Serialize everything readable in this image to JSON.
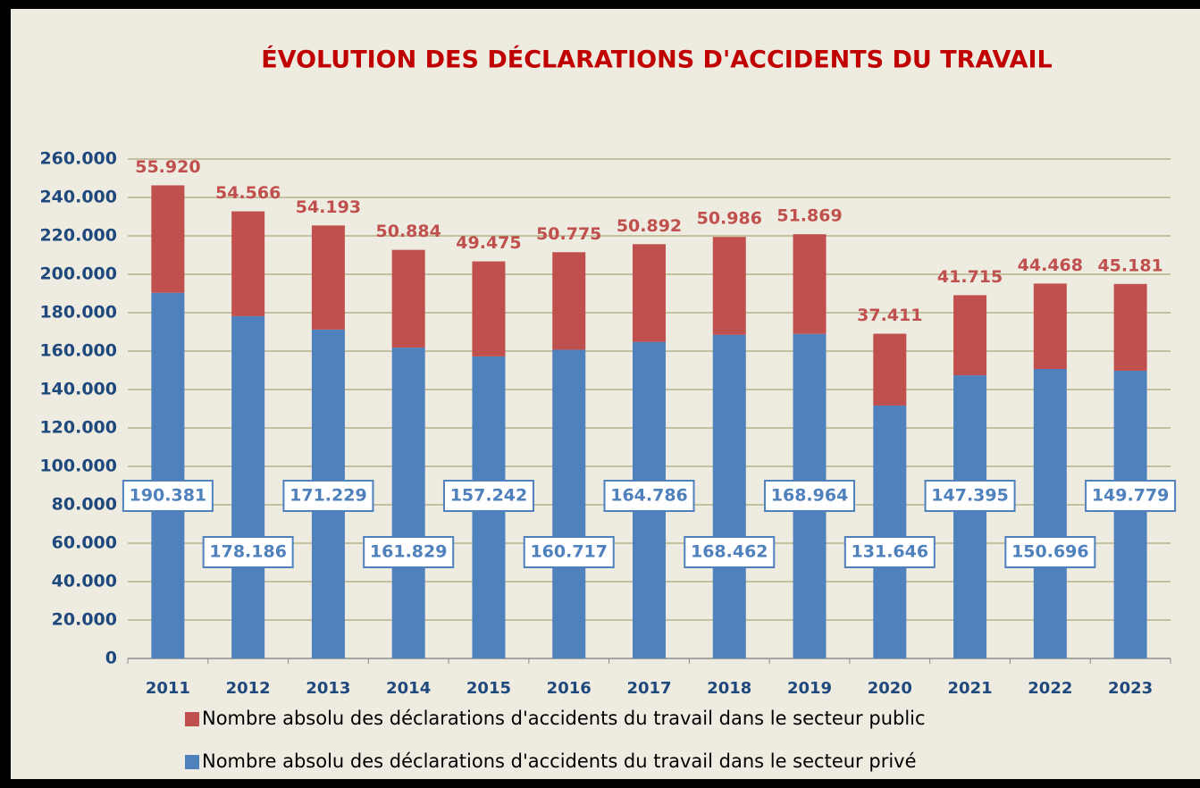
{
  "chart_data": {
    "type": "stacked_bar",
    "title": "ÉVOLUTION DES DÉCLARATIONS D'ACCIDENTS DU TRAVAIL",
    "categories": [
      "2011",
      "2012",
      "2013",
      "2014",
      "2015",
      "2016",
      "2017",
      "2018",
      "2019",
      "2020",
      "2021",
      "2022",
      "2023"
    ],
    "series": [
      {
        "name": "Nombre absolu des déclarations d'accidents du travail dans le secteur privé",
        "color": "#4f81bd",
        "values": [
          190381,
          178186,
          171229,
          161829,
          157242,
          160717,
          164786,
          168462,
          168964,
          131646,
          147395,
          150696,
          149779
        ],
        "value_labels": [
          "190.381",
          "178.186",
          "171.229",
          "161.829",
          "157.242",
          "160.717",
          "164.786",
          "168.462",
          "168.964",
          "131.646",
          "147.395",
          "150.696",
          "149.779"
        ]
      },
      {
        "name": "Nombre absolu des déclarations d'accidents du travail dans le secteur public",
        "color": "#c0504d",
        "values": [
          55920,
          54566,
          54193,
          50884,
          49475,
          50775,
          50892,
          50986,
          51869,
          37411,
          41715,
          44468,
          45181
        ],
        "value_labels": [
          "55.920",
          "54.566",
          "54.193",
          "50.884",
          "49.475",
          "50.775",
          "50.892",
          "50.986",
          "51.869",
          "37.411",
          "41.715",
          "44.468",
          "45.181"
        ]
      }
    ],
    "ylim": [
      0,
      260000
    ],
    "yticks": [
      0,
      {
        "value": 20000,
        "label": "20.000"
      },
      {
        "value": 40000,
        "label": "40.000"
      },
      {
        "value": 60000,
        "label": "60.000"
      },
      {
        "value": 80000,
        "label": "80.000"
      },
      {
        "value": 100000,
        "label": "100.000"
      },
      {
        "value": 120000,
        "label": "120.000"
      },
      {
        "value": 140000,
        "label": "140.000"
      },
      {
        "value": 160000,
        "label": "160.000"
      },
      {
        "value": 180000,
        "label": "180.000"
      },
      {
        "value": 200000,
        "label": "200.000"
      },
      {
        "value": 220000,
        "label": "220.000"
      },
      {
        "value": 240000,
        "label": "240.000"
      },
      {
        "value": 260000,
        "label": "260.000"
      }
    ],
    "grid": true
  }
}
